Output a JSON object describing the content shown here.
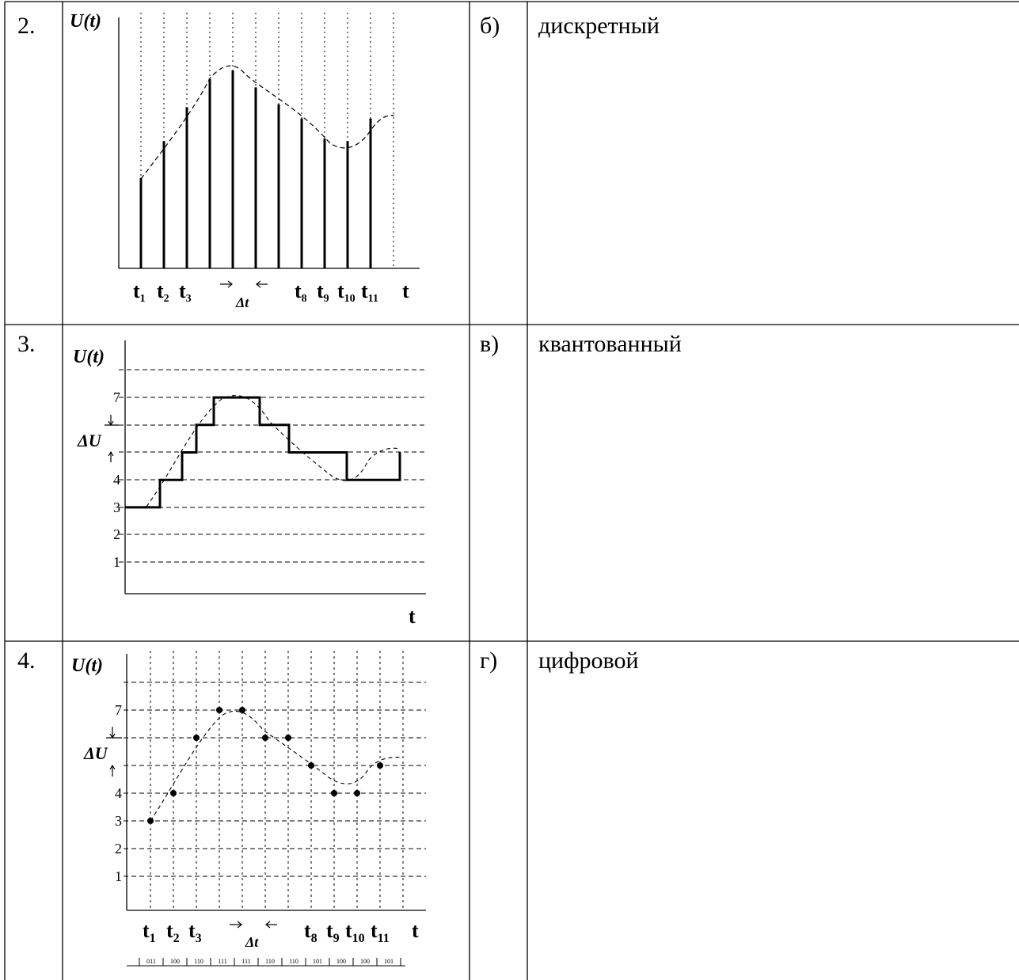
{
  "rows": [
    {
      "number": "2.",
      "letter": "б)",
      "term": "дискретный",
      "chart": {
        "ylabel_u": "U",
        "ylabel_t": "t",
        "xlabel": "t",
        "tick_labels": [
          {
            "main": "t",
            "sub": "1"
          },
          {
            "main": "t",
            "sub": "2"
          },
          {
            "main": "t",
            "sub": "3"
          },
          {
            "main": "t",
            "sub": "8"
          },
          {
            "main": "t",
            "sub": "9"
          },
          {
            "main": "t",
            "sub": "10"
          },
          {
            "main": "t",
            "sub": "11"
          }
        ],
        "delta": "Δt"
      }
    },
    {
      "number": "3.",
      "letter": "в)",
      "term": "квантованный",
      "chart": {
        "ylabel_u": "U",
        "ylabel_t": "t",
        "xlabel": "t",
        "level_labels": [
          "7",
          "4",
          "3",
          "2",
          "1"
        ],
        "delta": "ΔU"
      }
    },
    {
      "number": "4.",
      "letter": "г)",
      "term": "цифровой",
      "chart": {
        "ylabel_u": "U",
        "ylabel_t": "t",
        "xlabel": "t",
        "level_labels": [
          "7",
          "4",
          "3",
          "2",
          "1"
        ],
        "delta_u": "ΔU",
        "delta_t": "Δt",
        "tick_labels": [
          {
            "main": "t",
            "sub": "1"
          },
          {
            "main": "t",
            "sub": "2"
          },
          {
            "main": "t",
            "sub": "3"
          },
          {
            "main": "t",
            "sub": "8"
          },
          {
            "main": "t",
            "sub": "9"
          },
          {
            "main": "t",
            "sub": "10"
          },
          {
            "main": "t",
            "sub": "11"
          }
        ],
        "codes": [
          "011",
          "100",
          "110",
          "111",
          "111",
          "110",
          "110",
          "101",
          "100",
          "100",
          "101"
        ]
      }
    }
  ],
  "chart_data": [
    {
      "type": "bar",
      "title": "",
      "description_source": "row 2 discrete signal: sampled values at equal intervals",
      "x": [
        1,
        2,
        3,
        4,
        5,
        6,
        7,
        8,
        9,
        10,
        11
      ],
      "values": [
        3.2,
        4.5,
        5.7,
        6.7,
        7.0,
        6.4,
        5.8,
        5.3,
        4.6,
        4.5,
        5.3
      ],
      "envelope": "dashed"
    },
    {
      "type": "line",
      "title": "",
      "step": true,
      "x": [
        0,
        1,
        2,
        3,
        4,
        5,
        6,
        7,
        8,
        9,
        10,
        11
      ],
      "values": [
        3,
        4,
        5,
        6,
        7,
        7,
        6,
        5,
        5,
        4,
        4,
        5
      ],
      "ylim": [
        0,
        8
      ]
    },
    {
      "type": "scatter",
      "title": "",
      "x": [
        1,
        2,
        3,
        4,
        5,
        6,
        7,
        8,
        9,
        10,
        11
      ],
      "values": [
        3,
        4,
        6,
        7,
        7,
        6,
        6,
        5,
        4,
        4,
        5
      ],
      "ylim": [
        0,
        8
      ]
    }
  ]
}
